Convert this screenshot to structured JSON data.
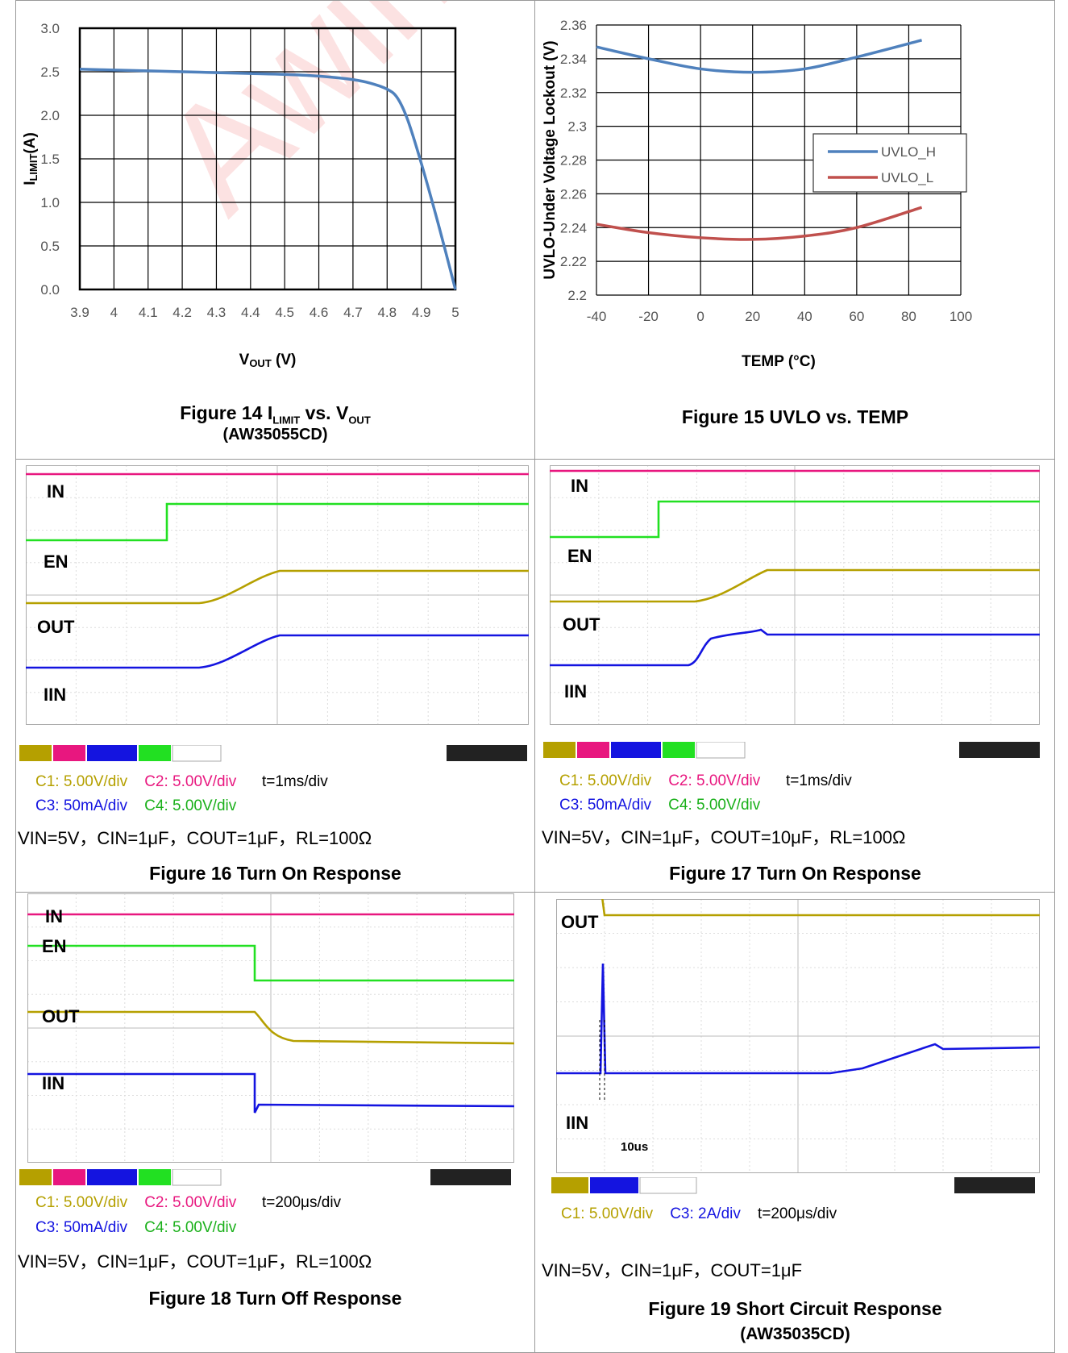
{
  "watermark": "Awinic Confidential",
  "fig14": {
    "caption_line1_a": "Figure 14   I",
    "caption_line1_sub": "LIMIT",
    "caption_line1_b": " vs. V",
    "caption_line1_sub2": "OUT",
    "caption_line2": "(AW35055CD)"
  },
  "fig15": {
    "caption": "Figure 15  UVLO vs. TEMP"
  },
  "fig16": {
    "caption": "Figure 16  Turn On Response",
    "labels": [
      "IN",
      "EN",
      "OUT",
      "IIN"
    ],
    "legend1": [
      "C1: 5.00V/div",
      "C2: 5.00V/div",
      "t=1ms/div"
    ],
    "legend2": [
      "C3: 50mA/div",
      "C4: 5.00V/div"
    ],
    "cond": "VIN=5V，CIN=1μF，COUT=1μF，RL=100Ω"
  },
  "fig17": {
    "caption": "Figure 17  Turn On Response",
    "labels": [
      "IN",
      "EN",
      "OUT",
      "IIN"
    ],
    "legend1": [
      "C1: 5.00V/div",
      "C2: 5.00V/div",
      "t=1ms/div"
    ],
    "legend2": [
      "C3: 50mA/div",
      "C4: 5.00V/div"
    ],
    "cond": "VIN=5V，CIN=1μF，COUT=10μF，RL=100Ω"
  },
  "fig18": {
    "caption": "Figure 18  Turn Off Response",
    "labels": [
      "IN",
      "EN",
      "OUT",
      "IIN"
    ],
    "legend1": [
      "C1: 5.00V/div",
      "C2: 5.00V/div",
      "t=200μs/div"
    ],
    "legend2": [
      "C3: 50mA/div",
      "C4: 5.00V/div"
    ],
    "cond": "VIN=5V，CIN=1μF，COUT=1μF，RL=100Ω"
  },
  "fig19": {
    "caption_line1": "Figure 19  Short Circuit Response",
    "caption_line2": "(AW35035CD)",
    "labels": [
      "OUT",
      "IIN"
    ],
    "marker": "10us",
    "legend1": [
      "C1: 5.00V/div",
      "C3: 2A/div",
      "t=200μs/div"
    ],
    "cond": "VIN=5V，CIN=1μF，COUT=1μF"
  },
  "colors": {
    "c1": "#b5a000",
    "c2": "#e8177f",
    "c3": "#1414e0",
    "c4": "#22e022",
    "blue_line": "#4f81bd",
    "red_line": "#c0504d"
  },
  "chart_data": [
    {
      "type": "line",
      "xlabel": "VOUT (V)",
      "ylabel": "ILIMIT(A)",
      "xlim": [
        3.9,
        5.0
      ],
      "ylim": [
        0.0,
        3.0
      ],
      "xticks": [
        "3.9",
        "4",
        "4.1",
        "4.2",
        "4.3",
        "4.4",
        "4.5",
        "4.6",
        "4.7",
        "4.8",
        "4.9",
        "5"
      ],
      "yticks": [
        "0.0",
        "0.5",
        "1.0",
        "1.5",
        "2.0",
        "2.5",
        "3.0"
      ],
      "grid": true,
      "series": [
        {
          "x": [
            3.9,
            4.0,
            4.1,
            4.2,
            4.3,
            4.4,
            4.5,
            4.6,
            4.7,
            4.75,
            4.8,
            4.83,
            4.86,
            4.9,
            4.95,
            5.0
          ],
          "y": [
            2.53,
            2.52,
            2.51,
            2.5,
            2.49,
            2.48,
            2.47,
            2.45,
            2.41,
            2.37,
            2.3,
            2.2,
            1.95,
            1.45,
            0.75,
            0.0
          ]
        }
      ]
    },
    {
      "type": "line",
      "xlabel": "TEMP (°C)",
      "ylabel": "UVLO-Under Voltage Lockout (V)",
      "xlim": [
        -40,
        100
      ],
      "ylim": [
        2.2,
        2.36
      ],
      "xticks": [
        "-40",
        "-20",
        "0",
        "20",
        "40",
        "60",
        "80",
        "100"
      ],
      "yticks": [
        "2.2",
        "2.22",
        "2.24",
        "2.26",
        "2.28",
        "2.3",
        "2.32",
        "2.34",
        "2.36"
      ],
      "grid": true,
      "legend": "right",
      "series": [
        {
          "name": "UVLO_H",
          "x": [
            -40,
            -20,
            0,
            20,
            40,
            60,
            85
          ],
          "y": [
            2.347,
            2.34,
            2.334,
            2.332,
            2.334,
            2.341,
            2.351
          ]
        },
        {
          "name": "UVLO_L",
          "x": [
            -40,
            -20,
            0,
            20,
            40,
            60,
            85
          ],
          "y": [
            2.242,
            2.237,
            2.234,
            2.233,
            2.235,
            2.24,
            2.252
          ]
        }
      ]
    }
  ]
}
